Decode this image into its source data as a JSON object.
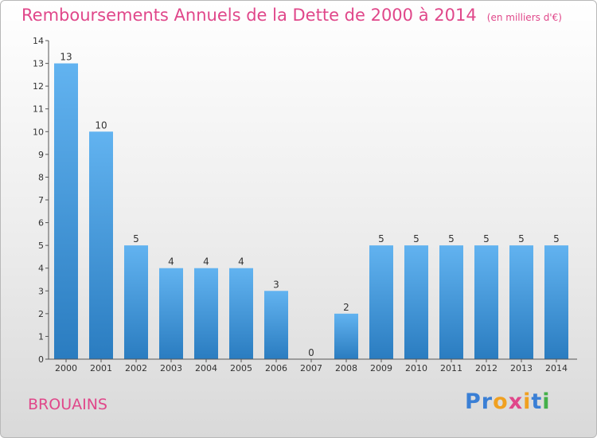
{
  "header": {
    "title": "Remboursements Annuels de la Dette de 2000 à 2014",
    "unit": "(en milliers d'€)"
  },
  "commune": "BROUAINS",
  "logo": {
    "text": "Proxiti",
    "letters": [
      {
        "ch": "P",
        "color": "#3a7fd5"
      },
      {
        "ch": "r",
        "color": "#3a7fd5"
      },
      {
        "ch": "o",
        "color": "#f0a020"
      },
      {
        "ch": "x",
        "color": "#e0478a"
      },
      {
        "ch": "i",
        "color": "#f0a020"
      },
      {
        "ch": "t",
        "color": "#3a7fd5"
      },
      {
        "ch": "i",
        "color": "#44b04a"
      }
    ]
  },
  "colors": {
    "title": "#e0478a",
    "bar_top": "#62b3f0",
    "bar_bottom": "#2a7cc0",
    "axis": "#555555",
    "text": "#333333"
  },
  "chart_data": {
    "type": "bar",
    "categories": [
      "2000",
      "2001",
      "2002",
      "2003",
      "2004",
      "2005",
      "2006",
      "2007",
      "2008",
      "2009",
      "2010",
      "2011",
      "2012",
      "2013",
      "2014"
    ],
    "values": [
      13,
      10,
      5,
      4,
      4,
      4,
      3,
      0,
      2,
      5,
      5,
      5,
      5,
      5,
      5
    ],
    "data_labels": [
      "13",
      "10",
      "5",
      "4",
      "4",
      "4",
      "3",
      "0",
      "2",
      "5",
      "5",
      "5",
      "5",
      "5",
      "5"
    ],
    "title": "Remboursements Annuels de la Dette de 2000 à 2014",
    "ylabel": "",
    "xlabel": "",
    "ylim": [
      0,
      14
    ],
    "yticks": [
      0,
      1,
      2,
      3,
      4,
      5,
      6,
      7,
      8,
      9,
      10,
      11,
      12,
      13,
      14
    ],
    "ytick_labels": [
      "0",
      "1",
      "2",
      "3",
      "4",
      "5",
      "6",
      "7",
      "8",
      "9",
      "10",
      "11",
      "12",
      "13",
      "14"
    ],
    "grid": false,
    "legend": "none"
  }
}
